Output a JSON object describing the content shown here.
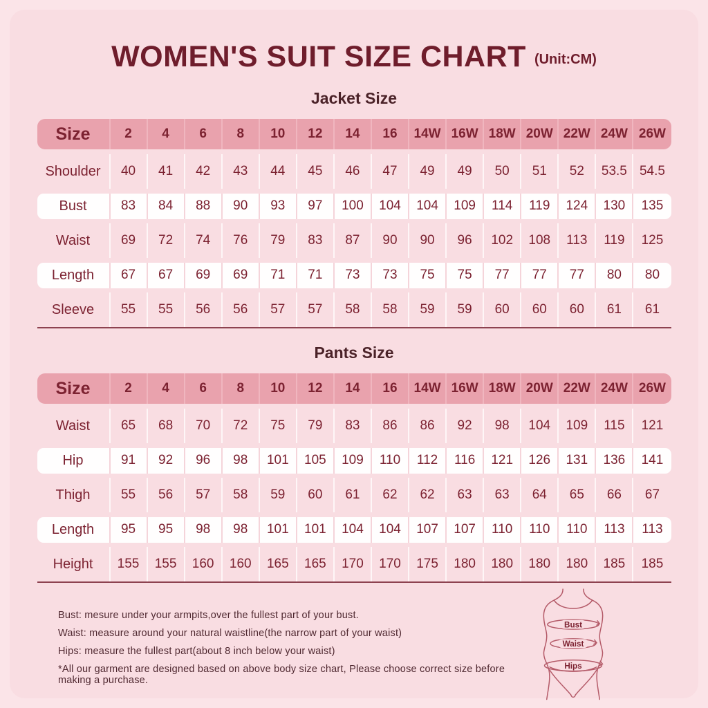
{
  "header": {
    "title": "WOMEN'S SUIT SIZE CHART",
    "unit": "(Unit:CM)"
  },
  "chart_data": [
    {
      "type": "table",
      "title": "Jacket Size",
      "columns": [
        "Size",
        "2",
        "4",
        "6",
        "8",
        "10",
        "12",
        "14",
        "16",
        "14W",
        "16W",
        "18W",
        "20W",
        "22W",
        "24W",
        "26W"
      ],
      "rows": [
        {
          "label": "Shoulder",
          "values": [
            40,
            41,
            42,
            43,
            44,
            45,
            46,
            47,
            49,
            49,
            50,
            51,
            52,
            53.5,
            54.5
          ]
        },
        {
          "label": "Bust",
          "values": [
            83,
            84,
            88,
            90,
            93,
            97,
            100,
            104,
            104,
            109,
            114,
            119,
            124,
            130,
            135
          ]
        },
        {
          "label": "Waist",
          "values": [
            69,
            72,
            74,
            76,
            79,
            83,
            87,
            90,
            90,
            96,
            102,
            108,
            113,
            119,
            125
          ]
        },
        {
          "label": "Length",
          "values": [
            67,
            67,
            69,
            69,
            71,
            71,
            73,
            73,
            75,
            75,
            77,
            77,
            77,
            80,
            80
          ]
        },
        {
          "label": "Sleeve",
          "values": [
            55,
            55,
            56,
            56,
            57,
            57,
            58,
            58,
            59,
            59,
            60,
            60,
            60,
            61,
            61
          ]
        }
      ]
    },
    {
      "type": "table",
      "title": "Pants Size",
      "columns": [
        "Size",
        "2",
        "4",
        "6",
        "8",
        "10",
        "12",
        "14",
        "16",
        "14W",
        "16W",
        "18W",
        "20W",
        "22W",
        "24W",
        "26W"
      ],
      "rows": [
        {
          "label": "Waist",
          "values": [
            65,
            68,
            70,
            72,
            75,
            79,
            83,
            86,
            86,
            92,
            98,
            104,
            109,
            115,
            121
          ]
        },
        {
          "label": "Hip",
          "values": [
            91,
            92,
            96,
            98,
            101,
            105,
            109,
            110,
            112,
            116,
            121,
            126,
            131,
            136,
            141
          ]
        },
        {
          "label": "Thigh",
          "values": [
            55,
            56,
            57,
            58,
            59,
            60,
            61,
            62,
            62,
            63,
            63,
            64,
            65,
            66,
            67
          ]
        },
        {
          "label": "Length",
          "values": [
            95,
            95,
            98,
            98,
            101,
            101,
            104,
            104,
            107,
            107,
            110,
            110,
            110,
            113,
            113
          ]
        },
        {
          "label": "Height",
          "values": [
            155,
            155,
            160,
            160,
            165,
            165,
            170,
            170,
            175,
            180,
            180,
            180,
            180,
            185,
            185
          ]
        }
      ]
    }
  ],
  "notes": [
    "Bust: mesure under your armpits,over the fullest part of your bust.",
    "Waist: measure around your natural waistline(the narrow part of your waist)",
    "Hips: measure the fullest part(about 8 inch below your waist)",
    "*All our garment are designed based on above body size chart, Please choose correct size before making a purchase."
  ],
  "figure": {
    "labels": [
      "Bust",
      "Waist",
      "Hips"
    ]
  },
  "colors": {
    "background": "#fbe4e8",
    "panel": "#f9dde2",
    "header_band": "#e9a2ad",
    "title_text": "#6f1d2c",
    "body_text": "#7c2231",
    "white_row": "#fffefe",
    "table_bottom_line": "#8d4250",
    "figure_stroke": "#b45a68"
  }
}
